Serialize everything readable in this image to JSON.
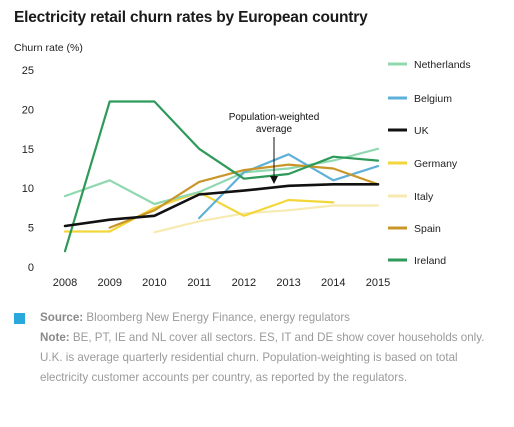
{
  "title": "Electricity retail churn rates by European country",
  "ylabel": "Churn rate (%)",
  "annotation": {
    "line1": "Population-weighted",
    "line2": "average"
  },
  "footer": {
    "source_label": "Source:",
    "source_text": "Bloomberg New Energy Finance, energy regulators",
    "note_label": "Note:",
    "note_text": "BE, PT, IE and NL cover all sectors. ES, IT and DE show cover households only. U.K. is average quarterly residential churn. Population-weighting is based on total electricity customer accounts per country, as reported by the regulators.",
    "accent_color": "#2aa8dc"
  },
  "chart_data": {
    "type": "line",
    "x": [
      2008,
      2009,
      2010,
      2011,
      2012,
      2013,
      2014,
      2015
    ],
    "ylim": [
      0,
      25
    ],
    "yticks": [
      0,
      5,
      10,
      15,
      20,
      25
    ],
    "xticks": [
      "2008",
      "2009",
      "2010",
      "2011",
      "2012",
      "2013",
      "2014",
      "2015"
    ],
    "grid": false,
    "legend": "right",
    "series": [
      {
        "name": "Netherlands",
        "color": "#8fd8b0",
        "values": [
          9,
          11,
          8,
          9.5,
          12,
          12.5,
          13.5,
          15
        ]
      },
      {
        "name": "Belgium",
        "color": "#5fb0d8",
        "values": [
          null,
          null,
          null,
          6.2,
          12,
          14.3,
          11,
          12.8
        ]
      },
      {
        "name": "UK",
        "color": "#111111",
        "values": [
          5.2,
          6,
          6.5,
          9.2,
          9.7,
          10.3,
          10.5,
          10.5
        ]
      },
      {
        "name": "Germany",
        "color": "#f2d63a",
        "values": [
          4.5,
          4.5,
          7.5,
          9.5,
          6.5,
          8.5,
          8.2,
          null
        ]
      },
      {
        "name": "Italy",
        "color": "#f7eab0",
        "values": [
          null,
          null,
          4.4,
          5.8,
          6.8,
          7.2,
          7.8,
          7.8
        ]
      },
      {
        "name": "Spain",
        "color": "#c9962a",
        "values": [
          null,
          5,
          7.2,
          10.8,
          12.3,
          13,
          12.5,
          10.5
        ]
      },
      {
        "name": "Ireland",
        "color": "#2e9a5a",
        "values": [
          2,
          21,
          21,
          15,
          11.2,
          11.8,
          14,
          13.5
        ]
      }
    ]
  }
}
